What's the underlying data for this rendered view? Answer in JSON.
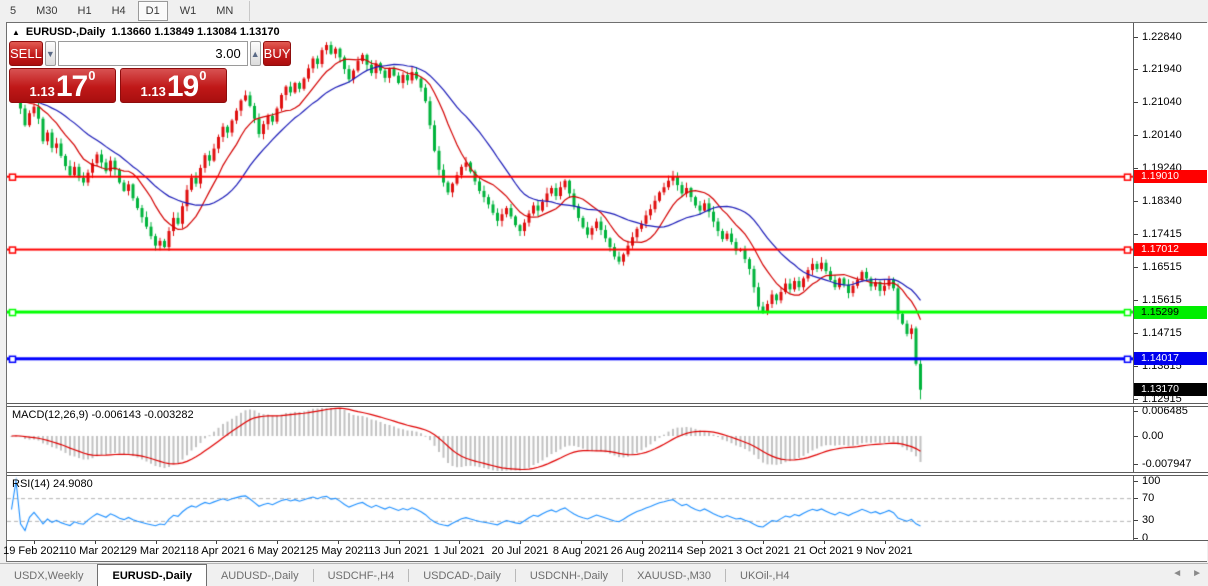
{
  "toolbar": {
    "timeframes": [
      {
        "label": "5",
        "active": false
      },
      {
        "label": "M30",
        "active": false
      },
      {
        "label": "H1",
        "active": false
      },
      {
        "label": "H4",
        "active": false
      },
      {
        "label": "D1",
        "active": true
      },
      {
        "label": "W1",
        "active": false
      },
      {
        "label": "MN",
        "active": false
      }
    ]
  },
  "header": {
    "collapse_arrow": "▲",
    "symbol_label": "EURUSD-,Daily",
    "ohlc_label": "1.13660 1.13849 1.13084 1.13170"
  },
  "trade_panel": {
    "sell_label": "SELL",
    "buy_label": "BUY",
    "volume": "3.00",
    "volume_down_arrow": "▼",
    "volume_up_arrow": "▲",
    "sell_price": {
      "prefix": "1.13",
      "big": "17",
      "sup": "0"
    },
    "buy_price": {
      "prefix": "1.13",
      "big": "19",
      "sup": "0"
    }
  },
  "chart_data": {
    "type": "candlestick",
    "symbol": "EURUSD-",
    "timeframe": "Daily",
    "ohlc_display": {
      "open": 1.1366,
      "high": 1.13849,
      "low": 1.13084,
      "close": 1.1317
    },
    "price_top": 1.2284,
    "price_bottom": 1.12915,
    "y_axis_ticks": [
      "1.22840",
      "1.21940",
      "1.21040",
      "1.20140",
      "1.19240",
      "1.18340",
      "1.17415",
      "1.16515",
      "1.15615",
      "1.14715",
      "1.13815",
      "1.12915"
    ],
    "bull_color": "#e01010",
    "bear_color": "#00b43c",
    "ma_fast": {
      "period": 10,
      "color": "#d40000"
    },
    "ma_slow": {
      "period": 21,
      "color": "#1a1ab8"
    },
    "closes": [
      1.2115,
      1.213,
      1.2088,
      1.2042,
      1.2075,
      1.2093,
      1.206,
      1.1998,
      1.2022,
      1.198,
      1.1992,
      1.1958,
      1.193,
      1.1905,
      1.1928,
      1.1898,
      1.1885,
      1.1912,
      1.1938,
      1.1962,
      1.194,
      1.1916,
      1.1945,
      1.192,
      1.1885,
      1.1862,
      1.188,
      1.1842,
      1.1815,
      1.179,
      1.1764,
      1.1738,
      1.1712,
      1.1725,
      1.1708,
      1.1752,
      1.1788,
      1.1772,
      1.182,
      1.1865,
      1.1898,
      1.1882,
      1.1925,
      1.196,
      1.1945,
      1.1978,
      1.201,
      1.2038,
      1.2022,
      1.2055,
      1.2082,
      1.211,
      1.2124,
      1.2095,
      1.206,
      1.2018,
      1.2045,
      1.2068,
      1.2052,
      1.2088,
      1.2125,
      1.2148,
      1.2132,
      1.2158,
      1.2142,
      1.217,
      1.2198,
      1.2225,
      1.221,
      1.2248,
      1.2262,
      1.2238,
      1.2252,
      1.2228,
      1.2196,
      1.2168,
      1.2192,
      1.2218,
      1.2235,
      1.2208,
      1.2185,
      1.2212,
      1.2192,
      1.2172,
      1.2196,
      1.2178,
      1.2158,
      1.218,
      1.2165,
      1.2188,
      1.217,
      1.2145,
      1.2108,
      1.2042,
      1.1972,
      1.192,
      1.1885,
      1.1858,
      1.1882,
      1.1905,
      1.1928,
      1.194,
      1.1915,
      1.1888,
      1.1862,
      1.1845,
      1.1825,
      1.1802,
      1.178,
      1.1798,
      1.1815,
      1.1792,
      1.1768,
      1.1752,
      1.1775,
      1.18,
      1.1822,
      1.1808,
      1.1832,
      1.1855,
      1.187,
      1.1848,
      1.1872,
      1.189,
      1.1855,
      1.182,
      1.1788,
      1.1762,
      1.1742,
      1.176,
      1.1778,
      1.1755,
      1.1732,
      1.1708,
      1.1682,
      1.1668,
      1.1688,
      1.1712,
      1.1735,
      1.1758,
      1.1772,
      1.1795,
      1.1812,
      1.1835,
      1.1858,
      1.1872,
      1.189,
      1.1902,
      1.1878,
      1.1855,
      1.187,
      1.1845,
      1.1822,
      1.1808,
      1.1828,
      1.1805,
      1.1778,
      1.1752,
      1.173,
      1.1745,
      1.1722,
      1.1698,
      1.1702,
      1.1675,
      1.1648,
      1.1598,
      1.1545,
      1.1528,
      1.1552,
      1.1578,
      1.1562,
      1.1585,
      1.1608,
      1.1592,
      1.1615,
      1.1598,
      1.1622,
      1.1645,
      1.1662,
      1.1648,
      1.1665,
      1.1642,
      1.1618,
      1.1598,
      1.1622,
      1.1605,
      1.1582,
      1.1602,
      1.1618,
      1.164,
      1.1622,
      1.16,
      1.1612,
      1.1588,
      1.1602,
      1.1618,
      1.1595,
      1.1525,
      1.1498,
      1.147,
      1.1485,
      1.1388,
      1.1317
    ],
    "final_low": 1.12904,
    "hlines": [
      {
        "price": 1.1901,
        "label": "1.19010",
        "color": "#ff0000",
        "thickness": 2,
        "label_bg": "#ff0000",
        "label_fg": "#ffffff"
      },
      {
        "price": 1.17012,
        "label": "1.17012",
        "color": "#ff0000",
        "thickness": 2,
        "label_bg": "#ff0000",
        "label_fg": "#ffffff"
      },
      {
        "price": 1.15299,
        "label": "1.15299",
        "color": "#00ff00",
        "thickness": 3,
        "label_bg": "#00ee00",
        "label_fg": "#000000"
      },
      {
        "price": 1.14017,
        "label": "1.14017",
        "color": "#0000ff",
        "thickness": 3,
        "label_bg": "#0000ee",
        "label_fg": "#ffffff"
      }
    ],
    "current_price": {
      "value": 1.1317,
      "label": "1.13170",
      "label_bg": "#000000",
      "label_fg": "#ffffff"
    },
    "x_ticks": [
      {
        "label": "19 Feb 2021",
        "i": 5
      },
      {
        "label": "10 Mar 2021",
        "i": 18.5
      },
      {
        "label": "29 Mar 2021",
        "i": 32
      },
      {
        "label": "18 Apr 2021",
        "i": 45.5
      },
      {
        "label": "6 May 2021",
        "i": 59
      },
      {
        "label": "25 May 2021",
        "i": 72.5
      },
      {
        "label": "13 Jun 2021",
        "i": 86
      },
      {
        "label": "1 Jul 2021",
        "i": 99.5
      },
      {
        "label": "20 Jul 2021",
        "i": 113
      },
      {
        "label": "8 Aug 2021",
        "i": 126.5
      },
      {
        "label": "26 Aug 2021",
        "i": 140
      },
      {
        "label": "14 Sep 2021",
        "i": 153.5
      },
      {
        "label": "3 Oct 2021",
        "i": 167
      },
      {
        "label": "21 Oct 2021",
        "i": 180.5
      },
      {
        "label": "9 Nov 2021",
        "i": 194
      }
    ],
    "indicators": [
      {
        "name": "MACD",
        "label": "MACD(12,26,9) -0.006143 -0.003282",
        "params": [
          12,
          26,
          9
        ],
        "values": [
          -0.006143,
          -0.003282
        ],
        "histogram_color": "#c2c2c2",
        "signal_color": "#e00000",
        "scale_labels": [
          {
            "text": "0.006485",
            "y": 388
          },
          {
            "text": "0.00",
            "y": 413
          },
          {
            "text": "-0.007947",
            "y": 441
          }
        ]
      },
      {
        "name": "RSI",
        "label": "RSI(14) 24.9080",
        "params": [
          14
        ],
        "value": 24.908,
        "line_color": "#1e90ff",
        "levels": [
          70,
          30
        ],
        "scale_labels": [
          {
            "text": "100",
            "v": 100
          },
          {
            "text": "70",
            "v": 70
          },
          {
            "text": "30",
            "v": 30
          },
          {
            "text": "0",
            "v": 0
          }
        ]
      }
    ]
  },
  "tabbar": {
    "tabs": [
      {
        "label": "USDX,Weekly",
        "active": false
      },
      {
        "label": "EURUSD-,Daily",
        "active": true
      },
      {
        "label": "AUDUSD-,Daily",
        "active": false
      },
      {
        "label": "USDCHF-,H4",
        "active": false
      },
      {
        "label": "USDCAD-,Daily",
        "active": false
      },
      {
        "label": "USDCNH-,Daily",
        "active": false
      },
      {
        "label": "XAUUSD-,M30",
        "active": false
      },
      {
        "label": "UKOil-,H4",
        "active": false
      }
    ],
    "scroll_left": "◄",
    "scroll_right": "►"
  }
}
